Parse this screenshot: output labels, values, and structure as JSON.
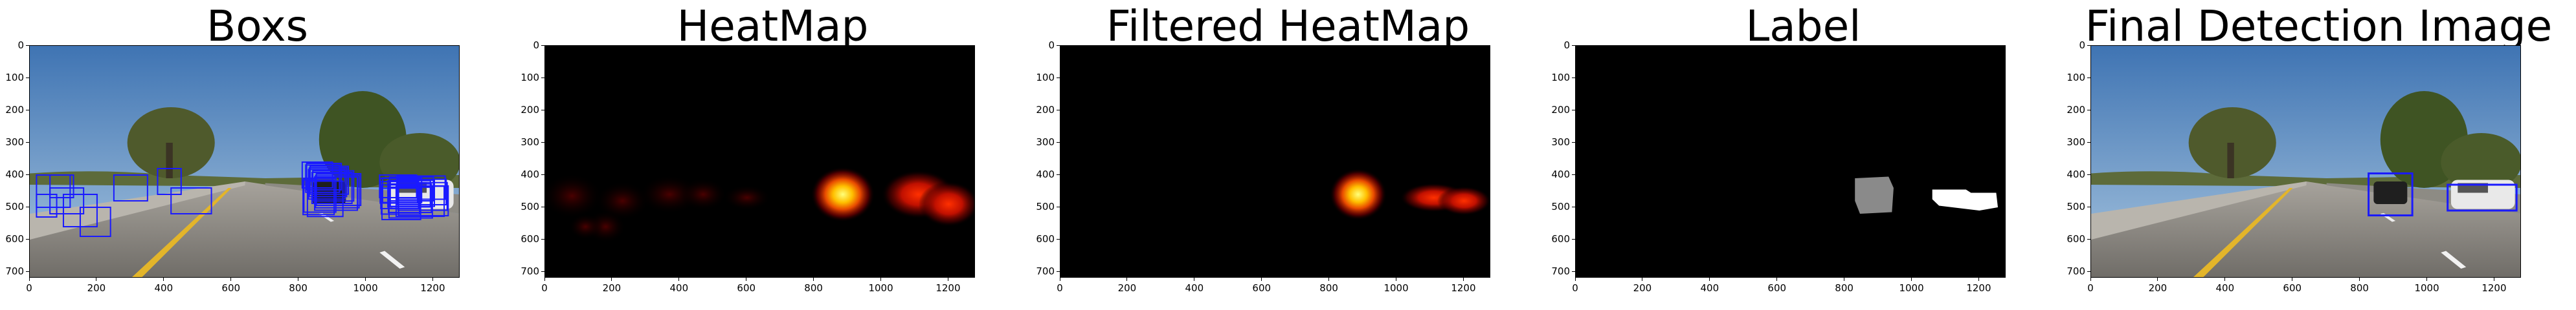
{
  "figure": {
    "panels": [
      {
        "title": "Boxs",
        "kind": "road_boxes"
      },
      {
        "title": "HeatMap",
        "kind": "heatmap"
      },
      {
        "title": "Filtered HeatMap",
        "kind": "heatmap_filtered"
      },
      {
        "title": "Label",
        "kind": "label"
      },
      {
        "title": "Final Detection Image",
        "kind": "road_final"
      }
    ],
    "x_ticks": [
      "0",
      "200",
      "400",
      "600",
      "800",
      "1000",
      "1200"
    ],
    "y_ticks": [
      "0",
      "100",
      "200",
      "300",
      "400",
      "500",
      "600",
      "700"
    ]
  },
  "colors": {
    "box_blue": "#1a1aff",
    "sky": "#5b8fc6",
    "heat_core": "#ffff7a",
    "heat_mid": "#e84a00",
    "heat_dim": "#3a0000",
    "label_gray": "#8a8a8a",
    "label_white": "#ffffff"
  }
}
